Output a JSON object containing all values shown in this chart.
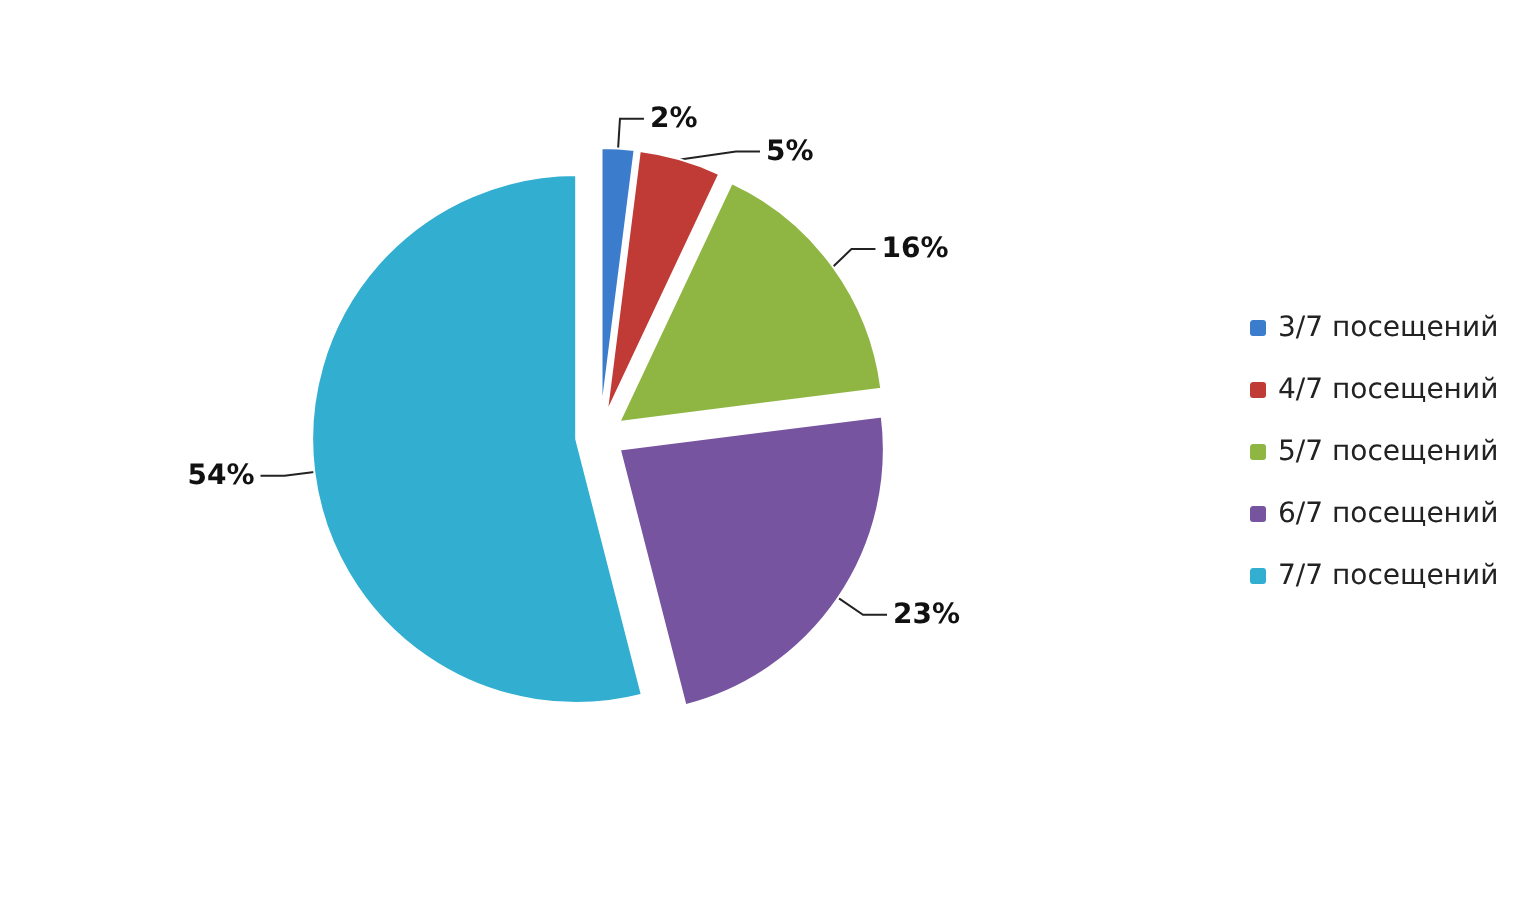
{
  "chart_data": {
    "type": "pie",
    "categories": [
      "3/7 посещений",
      "4/7 посещений",
      "5/7 посещений",
      "6/7 посещений",
      "7/7 посещений"
    ],
    "values": [
      2,
      5,
      16,
      23,
      54
    ],
    "colors": [
      "#3b7ccc",
      "#c03a36",
      "#8fb543",
      "#7654a0",
      "#31aed0"
    ],
    "value_labels": [
      "2%",
      "5%",
      "16%",
      "23%",
      "54%"
    ],
    "legend": "right"
  }
}
